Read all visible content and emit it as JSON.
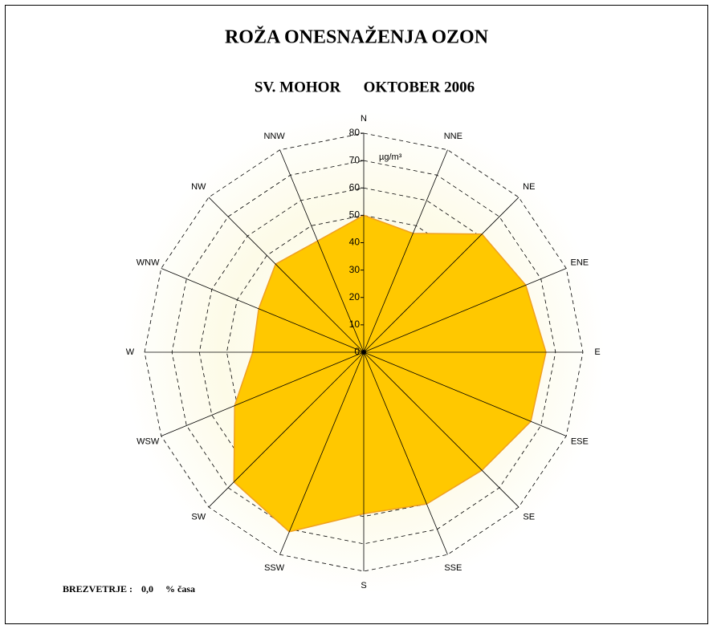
{
  "chart_data": {
    "type": "radar",
    "title": "ROŽA ONESNAŽENJA OZON",
    "subtitle": "SV. MOHOR      OKTOBER 2006",
    "unit": "µg/m³",
    "categories": [
      "N",
      "NNE",
      "NE",
      "ENE",
      "E",
      "ESE",
      "SE",
      "SSE",
      "S",
      "SSW",
      "SW",
      "WSW",
      "W",
      "WNW",
      "NW",
      "NNW"
    ],
    "values": [
      50,
      47,
      61,
      64,
      66.5,
      66,
      61,
      60,
      59,
      71,
      67,
      51,
      40.5,
      41.5,
      45.5,
      44
    ],
    "color": "#ffc800",
    "rlim": [
      0,
      80
    ],
    "rticks": [
      0,
      10,
      20,
      30,
      40,
      50,
      60,
      70,
      80
    ],
    "grid": true,
    "calm": {
      "label": "BREZVETRJE :",
      "value": "0,0",
      "unit": "% časa"
    }
  }
}
